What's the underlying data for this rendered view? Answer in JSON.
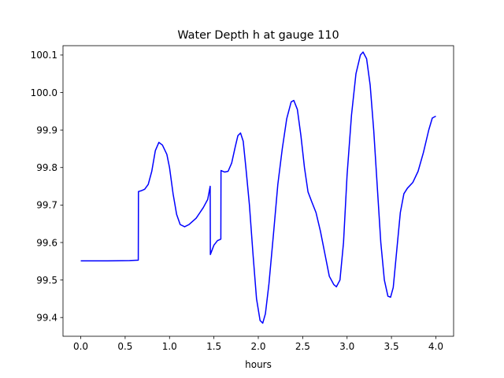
{
  "chart_data": {
    "type": "line",
    "title": "Water Depth h at gauge 110",
    "xlabel": "hours",
    "ylabel": "",
    "xlim": [
      -0.2,
      4.2
    ],
    "ylim": [
      99.35,
      100.125
    ],
    "xticks": [
      0.0,
      0.5,
      1.0,
      1.5,
      2.0,
      2.5,
      3.0,
      3.5,
      4.0
    ],
    "xtick_labels": [
      "0.0",
      "0.5",
      "1.0",
      "1.5",
      "2.0",
      "2.5",
      "3.0",
      "3.5",
      "4.0"
    ],
    "yticks": [
      99.4,
      99.5,
      99.6,
      99.7,
      99.8,
      99.9,
      100.0,
      100.1
    ],
    "ytick_labels": [
      "99.4",
      "99.5",
      "99.6",
      "99.7",
      "99.8",
      "99.9",
      "100.0",
      "100.1"
    ],
    "grid": false,
    "series": [
      {
        "name": "",
        "color": "#0000ff",
        "points": [
          [
            0.0,
            99.551
          ],
          [
            0.3,
            99.551
          ],
          [
            0.55,
            99.552
          ],
          [
            0.648,
            99.553
          ],
          [
            0.65,
            99.736
          ],
          [
            0.68,
            99.738
          ],
          [
            0.72,
            99.742
          ],
          [
            0.76,
            99.755
          ],
          [
            0.8,
            99.79
          ],
          [
            0.84,
            99.845
          ],
          [
            0.88,
            99.867
          ],
          [
            0.92,
            99.86
          ],
          [
            0.97,
            99.835
          ],
          [
            1.0,
            99.8
          ],
          [
            1.04,
            99.73
          ],
          [
            1.08,
            99.675
          ],
          [
            1.12,
            99.648
          ],
          [
            1.17,
            99.642
          ],
          [
            1.22,
            99.648
          ],
          [
            1.3,
            99.665
          ],
          [
            1.38,
            99.693
          ],
          [
            1.43,
            99.715
          ],
          [
            1.458,
            99.75
          ],
          [
            1.46,
            99.568
          ],
          [
            1.5,
            99.593
          ],
          [
            1.54,
            99.605
          ],
          [
            1.578,
            99.609
          ],
          [
            1.58,
            99.792
          ],
          [
            1.62,
            99.788
          ],
          [
            1.66,
            99.79
          ],
          [
            1.7,
            99.812
          ],
          [
            1.74,
            99.855
          ],
          [
            1.77,
            99.885
          ],
          [
            1.8,
            99.892
          ],
          [
            1.83,
            99.87
          ],
          [
            1.86,
            99.8
          ],
          [
            1.9,
            99.7
          ],
          [
            1.94,
            99.57
          ],
          [
            1.98,
            99.45
          ],
          [
            2.02,
            99.392
          ],
          [
            2.05,
            99.385
          ],
          [
            2.08,
            99.41
          ],
          [
            2.12,
            99.49
          ],
          [
            2.17,
            99.62
          ],
          [
            2.22,
            99.755
          ],
          [
            2.27,
            99.85
          ],
          [
            2.32,
            99.93
          ],
          [
            2.37,
            99.975
          ],
          [
            2.4,
            99.979
          ],
          [
            2.44,
            99.955
          ],
          [
            2.48,
            99.885
          ],
          [
            2.52,
            99.8
          ],
          [
            2.56,
            99.735
          ],
          [
            2.6,
            99.71
          ],
          [
            2.65,
            99.68
          ],
          [
            2.7,
            99.63
          ],
          [
            2.75,
            99.57
          ],
          [
            2.8,
            99.51
          ],
          [
            2.85,
            99.488
          ],
          [
            2.88,
            99.482
          ],
          [
            2.92,
            99.5
          ],
          [
            2.96,
            99.6
          ],
          [
            3.0,
            99.78
          ],
          [
            3.05,
            99.94
          ],
          [
            3.1,
            100.05
          ],
          [
            3.15,
            100.1
          ],
          [
            3.18,
            100.108
          ],
          [
            3.22,
            100.09
          ],
          [
            3.26,
            100.02
          ],
          [
            3.3,
            99.9
          ],
          [
            3.34,
            99.75
          ],
          [
            3.38,
            99.6
          ],
          [
            3.42,
            99.5
          ],
          [
            3.46,
            99.457
          ],
          [
            3.49,
            99.454
          ],
          [
            3.52,
            99.48
          ],
          [
            3.56,
            99.58
          ],
          [
            3.6,
            99.68
          ],
          [
            3.64,
            99.73
          ],
          [
            3.68,
            99.745
          ],
          [
            3.74,
            99.76
          ],
          [
            3.8,
            99.79
          ],
          [
            3.86,
            99.84
          ],
          [
            3.92,
            99.9
          ],
          [
            3.96,
            99.932
          ],
          [
            4.0,
            99.937
          ]
        ]
      }
    ]
  }
}
